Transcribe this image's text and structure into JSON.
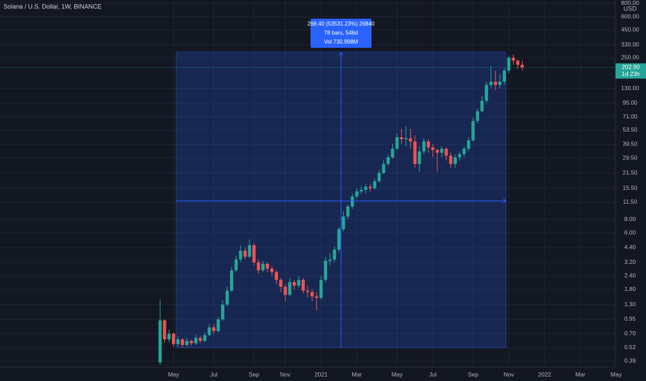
{
  "chart_data": {
    "type": "candlestick",
    "title": "Solana / U.S. Dollar, 1W, BINANCE",
    "y_unit": "USD",
    "log_scale": true,
    "grid": true,
    "up_color": "#26a69a",
    "down_color": "#ef5350",
    "ylim": [
      0.343,
      855
    ],
    "yticks": [
      {
        "value": 800,
        "label": "800.00"
      },
      {
        "value": 600,
        "label": "600.00"
      },
      {
        "value": 450,
        "label": "450.00"
      },
      {
        "value": 330,
        "label": "330.00"
      },
      {
        "value": 250,
        "label": "250.00"
      },
      {
        "value": 130,
        "label": "130.00"
      },
      {
        "value": 95,
        "label": "95.00"
      },
      {
        "value": 71,
        "label": "71.00"
      },
      {
        "value": 53.5,
        "label": "53.50"
      },
      {
        "value": 39.5,
        "label": "39.50"
      },
      {
        "value": 29.5,
        "label": "29.50"
      },
      {
        "value": 21.5,
        "label": "21.50"
      },
      {
        "value": 15.5,
        "label": "15.50"
      },
      {
        "value": 11.5,
        "label": "11.50"
      },
      {
        "value": 8,
        "label": "8.00"
      },
      {
        "value": 6,
        "label": "6.00"
      },
      {
        "value": 4.4,
        "label": "4.40"
      },
      {
        "value": 3.2,
        "label": "3.20"
      },
      {
        "value": 2.4,
        "label": "2.40"
      },
      {
        "value": 1.8,
        "label": "1.80"
      },
      {
        "value": 1.3,
        "label": "1.30"
      },
      {
        "value": 0.95,
        "label": "0.95"
      },
      {
        "value": 0.7,
        "label": "0.70"
      },
      {
        "value": 0.52,
        "label": "0.52"
      },
      {
        "value": 0.39,
        "label": "0.39"
      }
    ],
    "categories": [
      null,
      null,
      null,
      "May",
      null,
      null,
      null,
      null,
      null,
      null,
      null,
      null,
      "Jul",
      null,
      null,
      null,
      null,
      null,
      null,
      null,
      null,
      "Sep",
      null,
      null,
      null,
      null,
      null,
      null,
      "Nov",
      null,
      null,
      null,
      null,
      null,
      null,
      null,
      "2021",
      null,
      null,
      null,
      null,
      null,
      null,
      null,
      "Mar",
      null,
      null,
      null,
      null,
      null,
      null,
      null,
      null,
      "May",
      null,
      null,
      null,
      null,
      null,
      null,
      null,
      "Jul",
      null,
      null,
      null,
      null,
      null,
      null,
      null,
      null,
      "Sep",
      null,
      null,
      null,
      null,
      null,
      null,
      null,
      "Nov",
      null,
      null,
      null,
      null,
      null,
      null,
      null,
      "2022",
      null,
      null,
      null,
      null,
      null,
      null,
      null,
      "Mar",
      null,
      null,
      null,
      null,
      null,
      null,
      null,
      "May"
    ],
    "open": [
      0.38,
      0.93,
      0.62,
      0.7,
      0.56,
      0.62,
      0.55,
      0.6,
      0.57,
      0.64,
      0.6,
      0.68,
      0.8,
      0.74,
      0.95,
      1.3,
      1.75,
      2.7,
      3.4,
      4.1,
      3.6,
      4.6,
      3.2,
      2.7,
      3.1,
      2.8,
      2.6,
      2.2,
      1.9,
      1.6,
      2.1,
      1.95,
      2.2,
      1.75,
      1.7,
      1.55,
      1.5,
      2.2,
      3.3,
      3.4,
      4.2,
      6.5,
      8.5,
      10.5,
      13,
      14.5,
      15,
      16,
      15.5,
      18,
      21.5,
      26,
      30,
      36,
      46,
      44,
      45,
      42,
      26,
      34,
      42,
      37,
      35,
      33,
      36,
      31,
      26,
      30,
      32,
      36,
      43,
      65,
      80,
      100,
      140,
      150,
      140,
      150,
      190,
      250,
      235,
      215,
      null,
      null,
      null,
      null,
      null,
      null,
      null,
      null,
      null,
      null,
      null,
      null,
      null,
      null,
      null,
      null,
      null,
      null,
      null,
      null,
      null
    ],
    "high": [
      1.45,
      0.95,
      0.76,
      0.72,
      0.66,
      0.64,
      0.64,
      0.62,
      0.68,
      0.67,
      0.72,
      0.86,
      0.85,
      1.0,
      1.42,
      1.9,
      2.9,
      3.7,
      4.6,
      4.4,
      5.2,
      4.8,
      3.4,
      3.3,
      3.2,
      2.95,
      2.7,
      2.3,
      2.0,
      2.3,
      2.2,
      2.4,
      2.3,
      1.95,
      1.8,
      1.7,
      2.4,
      3.6,
      3.9,
      4.5,
      6.8,
      9.5,
      11,
      13.8,
      15.5,
      16.2,
      17,
      17,
      19,
      23,
      28,
      32,
      40,
      50,
      55,
      58,
      55,
      48,
      38,
      45,
      44,
      40,
      36,
      38,
      37,
      33,
      32,
      34,
      38,
      46,
      70,
      85,
      110,
      150,
      210,
      190,
      175,
      200,
      260,
      268.4,
      240,
      235,
      null,
      null,
      null,
      null,
      null,
      null,
      null,
      null,
      null,
      null,
      null,
      null,
      null,
      null,
      null,
      null,
      null,
      null,
      null,
      null,
      null
    ],
    "low": [
      0.36,
      0.58,
      0.58,
      0.53,
      0.53,
      0.52,
      0.53,
      0.54,
      0.55,
      0.57,
      0.58,
      0.66,
      0.7,
      0.72,
      0.92,
      1.25,
      1.7,
      2.6,
      3.2,
      3.4,
      3.5,
      3.0,
      2.5,
      2.6,
      2.6,
      2.4,
      2.0,
      1.7,
      1.4,
      1.55,
      1.8,
      1.85,
      1.65,
      1.5,
      1.4,
      1.15,
      1.45,
      2.1,
      3.0,
      3.2,
      4,
      6.2,
      8,
      10,
      12.5,
      13.8,
      14,
      14.5,
      15,
      17.5,
      21,
      25,
      29,
      35,
      40,
      38,
      36,
      24,
      22,
      32,
      33,
      30,
      22,
      30,
      28,
      24,
      24,
      28,
      30,
      34,
      42,
      62,
      78,
      95,
      130,
      125,
      130,
      140,
      180,
      215,
      195,
      190,
      null,
      null,
      null,
      null,
      null,
      null,
      null,
      null,
      null,
      null,
      null,
      null,
      null,
      null,
      null,
      null,
      null,
      null,
      null,
      null,
      null
    ],
    "close": [
      0.93,
      0.62,
      0.7,
      0.56,
      0.62,
      0.55,
      0.6,
      0.57,
      0.64,
      0.6,
      0.68,
      0.8,
      0.74,
      0.95,
      1.3,
      1.75,
      2.7,
      3.4,
      4.1,
      3.6,
      4.6,
      3.2,
      2.7,
      3.1,
      2.8,
      2.6,
      2.2,
      1.9,
      1.6,
      2.1,
      1.95,
      2.2,
      1.75,
      1.7,
      1.55,
      1.5,
      2.2,
      3.3,
      3.4,
      4.2,
      6.5,
      8.5,
      10.5,
      13,
      14.5,
      15,
      16,
      15.5,
      18,
      21.5,
      26,
      30,
      36,
      46,
      44,
      45,
      42,
      26,
      34,
      42,
      37,
      35,
      33,
      36,
      31,
      26,
      30,
      32,
      36,
      43,
      65,
      80,
      100,
      140,
      150,
      140,
      150,
      190,
      250,
      235,
      215,
      202.9,
      null,
      null,
      null,
      null,
      null,
      null,
      null,
      null,
      null,
      null,
      null,
      null,
      null,
      null,
      null,
      null,
      null,
      null,
      null,
      null,
      null
    ],
    "last_price": {
      "value": 202.9,
      "label": "202.90"
    },
    "countdown": "1d 23h",
    "measure": {
      "line1": "268.40 (53531.23%) 26840",
      "line2": "78 bars, 546d",
      "line3": "Vol 730.998M"
    }
  }
}
